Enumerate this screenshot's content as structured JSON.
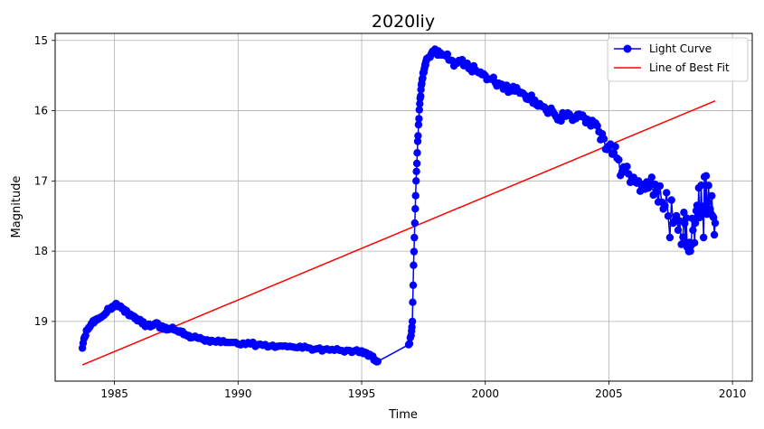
{
  "chart_data": {
    "type": "line",
    "title": "2020liy",
    "xlabel": "Time",
    "ylabel": "Magnitude",
    "xlim": [
      1982.6,
      2010.8
    ],
    "ylim": [
      19.85,
      14.9
    ],
    "y_inverted": true,
    "grid": true,
    "legend_position": "top-right",
    "x_ticks": [
      1985,
      1990,
      1995,
      2000,
      2005,
      2010
    ],
    "x_tick_labels": [
      "1985",
      "1990",
      "1995",
      "2000",
      "2005",
      "2010"
    ],
    "y_ticks": [
      15,
      16,
      17,
      18,
      19
    ],
    "y_tick_labels": [
      "15",
      "16",
      "17",
      "18",
      "19"
    ],
    "series": [
      {
        "name": "Light Curve",
        "color": "#0000ff",
        "marker": "circle",
        "x": [
          1983.7,
          1983.8,
          1983.9,
          1984.0,
          1984.1,
          1984.2,
          1984.3,
          1984.4,
          1984.5,
          1984.6,
          1984.7,
          1984.8,
          1984.9,
          1985.0,
          1985.1,
          1985.2,
          1985.35,
          1985.45,
          1985.55,
          1985.65,
          1985.8,
          1985.9,
          1986.0,
          1986.1,
          1986.2,
          1986.35,
          1986.5,
          1986.65,
          1986.8,
          1986.9,
          1987.0,
          1987.1,
          1987.25,
          1987.4,
          1987.55,
          1987.7,
          1987.85,
          1988.0,
          1988.2,
          1988.4,
          1988.6,
          1988.8,
          1989.0,
          1989.3,
          1989.6,
          1989.9,
          1990.2,
          1990.5,
          1990.8,
          1991.1,
          1991.4,
          1991.7,
          1992.0,
          1992.3,
          1992.6,
          1992.9,
          1993.2,
          1993.5,
          1993.8,
          1994.1,
          1994.4,
          1994.7,
          1995.0,
          1995.2,
          1995.4,
          1995.55,
          1995.65,
          1996.9,
          1997.0,
          1997.05,
          1997.1,
          1997.15,
          1997.2,
          1997.25,
          1997.3,
          1997.35,
          1997.4,
          1997.45,
          1997.5,
          1997.55,
          1997.6,
          1997.7,
          1997.8,
          1997.9,
          1998.0,
          1998.1,
          1998.2,
          1998.4,
          1998.6,
          1998.8,
          1999.0,
          1999.2,
          1999.4,
          1999.6,
          1999.8,
          2000.0,
          2000.2,
          2000.4,
          2000.6,
          2000.8,
          2001.0,
          2001.2,
          2001.4,
          2001.6,
          2001.8,
          2002.0,
          2002.2,
          2002.4,
          2002.6,
          2002.8,
          2003.0,
          2003.2,
          2003.4,
          2003.6,
          2003.8,
          2004.0,
          2004.2,
          2004.4,
          2004.6,
          2004.8,
          2005.0,
          2005.2,
          2005.4,
          2005.6,
          2005.8,
          2006.0,
          2006.2,
          2006.4,
          2006.6,
          2006.8,
          2007.0,
          2007.2,
          2007.4,
          2007.6,
          2007.8,
          2008.0,
          2008.1,
          2008.2,
          2008.3,
          2008.4,
          2008.5,
          2008.6,
          2008.7,
          2008.8,
          2008.9,
          2009.0,
          2009.1,
          2009.2,
          2009.3
        ],
        "values": [
          19.38,
          19.22,
          19.12,
          19.08,
          19.02,
          18.98,
          18.96,
          18.95,
          18.93,
          18.9,
          18.86,
          18.82,
          18.79,
          18.77,
          18.76,
          18.78,
          18.82,
          18.85,
          18.88,
          18.9,
          18.93,
          18.96,
          18.99,
          19.02,
          19.04,
          19.06,
          19.05,
          19.03,
          19.06,
          19.08,
          19.1,
          19.12,
          19.1,
          19.12,
          19.14,
          19.16,
          19.18,
          19.2,
          19.22,
          19.24,
          19.26,
          19.27,
          19.28,
          19.3,
          19.3,
          19.3,
          19.31,
          19.32,
          19.33,
          19.33,
          19.34,
          19.35,
          19.36,
          19.37,
          19.38,
          19.38,
          19.39,
          19.4,
          19.4,
          19.41,
          19.41,
          19.42,
          19.42,
          19.45,
          19.5,
          19.55,
          19.57,
          19.33,
          19.2,
          19.0,
          18.2,
          17.6,
          17.0,
          16.6,
          16.2,
          15.9,
          15.7,
          15.55,
          15.45,
          15.38,
          15.3,
          15.25,
          15.2,
          15.16,
          15.15,
          15.15,
          15.18,
          15.22,
          15.28,
          15.32,
          15.3,
          15.34,
          15.38,
          15.42,
          15.45,
          15.5,
          15.55,
          15.6,
          15.62,
          15.65,
          15.7,
          15.72,
          15.75,
          15.78,
          15.8,
          15.85,
          15.9,
          15.95,
          16.0,
          16.05,
          16.1,
          16.08,
          16.05,
          16.12,
          16.05,
          16.1,
          16.15,
          16.2,
          16.3,
          16.4,
          16.5,
          16.6,
          16.7,
          16.8,
          16.9,
          16.95,
          17.0,
          17.05,
          17.1,
          17.2,
          17.3,
          17.4,
          17.5,
          17.6,
          17.7,
          17.8,
          17.9,
          17.95,
          18.0,
          17.7,
          17.6,
          17.5,
          17.45,
          17.4,
          17.35,
          17.3,
          17.4,
          17.5,
          17.6
        ]
      },
      {
        "name": "Line of Best Fit",
        "color": "#ff0000",
        "marker": "none",
        "x": [
          1983.7,
          2009.3
        ],
        "values": [
          19.62,
          15.86
        ]
      }
    ],
    "scatter_bands": {
      "x_start": 2004.6,
      "x_end": 2009.3
    }
  }
}
